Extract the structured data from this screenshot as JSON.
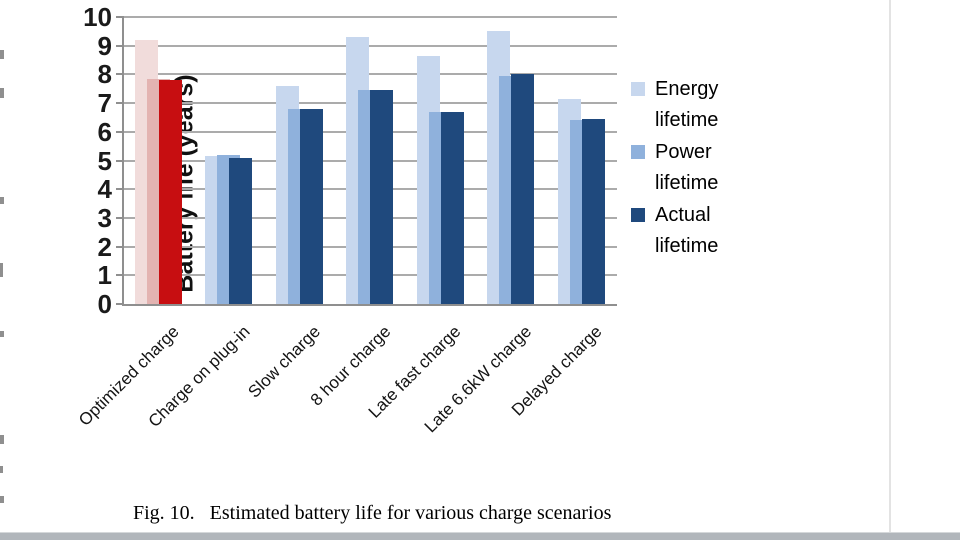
{
  "page": {
    "caption": "Fig. 10.   Estimated battery life for various charge scenarios"
  },
  "chart_data": {
    "type": "bar",
    "title": "",
    "xlabel": "",
    "ylabel": "Battery life (years)",
    "ylim": [
      0,
      10
    ],
    "ytick_step": 1,
    "grid": true,
    "legend_position": "right-middle",
    "categories": [
      "Optimized charge",
      "Charge on plug-in",
      "Slow charge",
      "8 hour charge",
      "Late fast charge",
      "Late 6.6kW charge",
      "Delayed charge"
    ],
    "series": [
      {
        "name": "Energy lifetime",
        "values": [
          9.2,
          5.15,
          7.6,
          9.3,
          8.65,
          9.5,
          7.15
        ],
        "color": "#c7d7ee",
        "first_category_color": "#f1dcdb"
      },
      {
        "name": "Power lifetime",
        "values": [
          7.85,
          5.2,
          6.8,
          7.45,
          6.7,
          7.95,
          6.4
        ],
        "color": "#8fb1dc",
        "first_category_color": "#e3b3b1"
      },
      {
        "name": "Actual lifetime",
        "values": [
          7.8,
          5.1,
          6.8,
          7.45,
          6.7,
          8.0,
          6.45
        ],
        "color": "#1f497d",
        "first_category_color": "#c70e11"
      }
    ],
    "highlighted_category": "Optimized charge"
  },
  "colors": {
    "gridline": "#ababab",
    "axis": "#8f8f8f",
    "page_divider": "#e3e3e3",
    "bottom_band": "#b1b6bb"
  }
}
